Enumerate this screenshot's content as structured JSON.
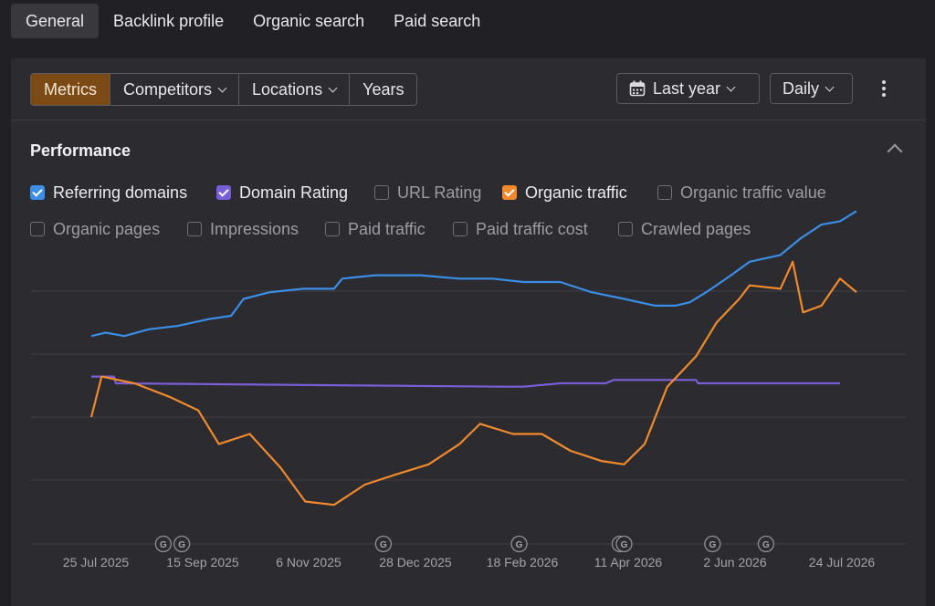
{
  "top_tabs": [
    {
      "label": "General",
      "active": true
    },
    {
      "label": "Backlink profile"
    },
    {
      "label": "Organic search"
    },
    {
      "label": "Paid search"
    }
  ],
  "toolbar": {
    "segments": [
      "Metrics",
      "Competitors",
      "Locations",
      "Years"
    ],
    "period_label": "Last year",
    "granularity_label": "Daily"
  },
  "performance": {
    "title": "Performance",
    "metrics": [
      {
        "label": "Referring domains",
        "checked": true,
        "color": "#3a8ee6"
      },
      {
        "label": "Domain Rating",
        "checked": true,
        "color": "#7a5ed8"
      },
      {
        "label": "URL Rating",
        "checked": false
      },
      {
        "label": "Organic traffic",
        "checked": true,
        "color": "#f08a2c"
      },
      {
        "label": "Organic traffic value",
        "checked": false
      },
      {
        "label": "Organic pages",
        "checked": false
      },
      {
        "label": "Impressions",
        "checked": false
      },
      {
        "label": "Paid traffic",
        "checked": false
      },
      {
        "label": "Paid traffic cost",
        "checked": false
      },
      {
        "label": "Crawled pages",
        "checked": false
      }
    ]
  },
  "chart_data": {
    "type": "line",
    "x_tick_labels": [
      "25 Jul 2025",
      "15 Sep 2025",
      "6 Nov 2025",
      "28 Dec 2025",
      "18 Feb 2026",
      "11 Apr 2026",
      "2 Jun 2026",
      "24 Jul 2026"
    ],
    "x_range": [
      "2025-07-25",
      "2026-07-24"
    ],
    "grid": true,
    "google_update_markers": [
      "2025-08-29",
      "2025-09-07",
      "2025-12-14",
      "2026-02-18",
      "2026-04-08",
      "2026-04-10",
      "2026-05-23",
      "2026-06-18"
    ],
    "series": [
      {
        "name": "Referring domains",
        "color": "#3a8ee6",
        "points": [
          [
            "2025-07-25",
            0.24
          ],
          [
            "2025-08-01",
            0.25
          ],
          [
            "2025-08-10",
            0.24
          ],
          [
            "2025-08-22",
            0.26
          ],
          [
            "2025-09-05",
            0.27
          ],
          [
            "2025-09-20",
            0.29
          ],
          [
            "2025-10-01",
            0.3
          ],
          [
            "2025-10-07",
            0.35
          ],
          [
            "2025-10-20",
            0.37
          ],
          [
            "2025-11-05",
            0.38
          ],
          [
            "2025-11-20",
            0.38
          ],
          [
            "2025-11-24",
            0.41
          ],
          [
            "2025-12-10",
            0.42
          ],
          [
            "2026-01-01",
            0.42
          ],
          [
            "2026-01-20",
            0.41
          ],
          [
            "2026-02-05",
            0.41
          ],
          [
            "2026-02-20",
            0.4
          ],
          [
            "2026-03-10",
            0.4
          ],
          [
            "2026-03-25",
            0.37
          ],
          [
            "2026-04-10",
            0.35
          ],
          [
            "2026-04-25",
            0.33
          ],
          [
            "2026-05-05",
            0.33
          ],
          [
            "2026-05-12",
            0.34
          ],
          [
            "2026-05-20",
            0.37
          ],
          [
            "2026-06-01",
            0.42
          ],
          [
            "2026-06-10",
            0.46
          ],
          [
            "2026-06-25",
            0.48
          ],
          [
            "2026-07-05",
            0.53
          ],
          [
            "2026-07-15",
            0.57
          ],
          [
            "2026-07-24",
            0.58
          ],
          [
            "2026-08-01",
            0.61
          ]
        ]
      },
      {
        "name": "Domain Rating",
        "color": "#7a5ed8",
        "points": [
          [
            "2025-07-25",
            0.12
          ],
          [
            "2025-08-05",
            0.12
          ],
          [
            "2025-08-06",
            0.1
          ],
          [
            "2026-02-10",
            0.09
          ],
          [
            "2026-02-20",
            0.09
          ],
          [
            "2026-03-10",
            0.1
          ],
          [
            "2026-04-01",
            0.1
          ],
          [
            "2026-04-05",
            0.11
          ],
          [
            "2026-05-15",
            0.11
          ],
          [
            "2026-05-16",
            0.1
          ],
          [
            "2026-07-24",
            0.1
          ]
        ]
      },
      {
        "name": "Organic traffic",
        "color": "#f08a2c",
        "points": [
          [
            "2025-07-25",
            0.0
          ],
          [
            "2025-07-30",
            0.12
          ],
          [
            "2025-08-15",
            0.1
          ],
          [
            "2025-09-01",
            0.06
          ],
          [
            "2025-09-15",
            0.02
          ],
          [
            "2025-09-25",
            -0.08
          ],
          [
            "2025-10-10",
            -0.05
          ],
          [
            "2025-10-25",
            -0.15
          ],
          [
            "2025-11-06",
            -0.25
          ],
          [
            "2025-11-20",
            -0.26
          ],
          [
            "2025-12-05",
            -0.2
          ],
          [
            "2025-12-20",
            -0.17
          ],
          [
            "2026-01-05",
            -0.14
          ],
          [
            "2026-01-20",
            -0.08
          ],
          [
            "2026-01-30",
            -0.02
          ],
          [
            "2026-02-15",
            -0.05
          ],
          [
            "2026-03-01",
            -0.05
          ],
          [
            "2026-03-15",
            -0.1
          ],
          [
            "2026-03-30",
            -0.13
          ],
          [
            "2026-04-10",
            -0.14
          ],
          [
            "2026-04-20",
            -0.08
          ],
          [
            "2026-05-01",
            0.09
          ],
          [
            "2026-05-15",
            0.18
          ],
          [
            "2026-05-25",
            0.28
          ],
          [
            "2026-06-05",
            0.35
          ],
          [
            "2026-06-10",
            0.39
          ],
          [
            "2026-06-25",
            0.38
          ],
          [
            "2026-07-01",
            0.46
          ],
          [
            "2026-07-06",
            0.31
          ],
          [
            "2026-07-15",
            0.33
          ],
          [
            "2026-07-24",
            0.41
          ],
          [
            "2026-08-01",
            0.37
          ]
        ]
      }
    ]
  }
}
